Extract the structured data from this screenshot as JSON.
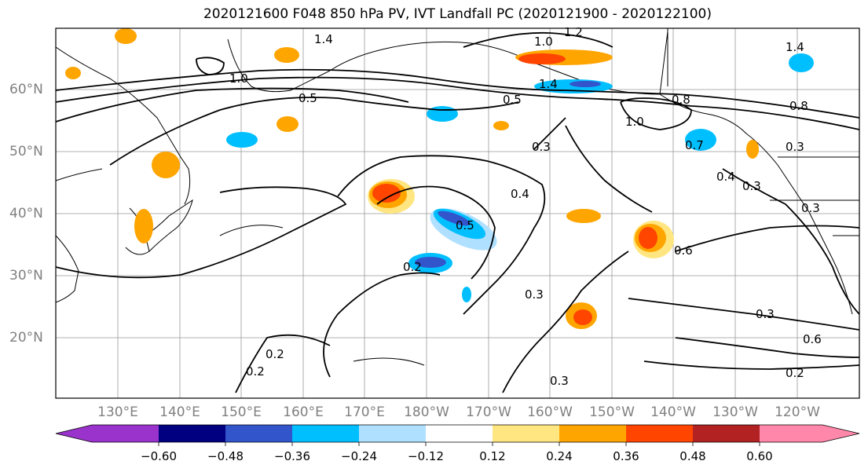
{
  "title": "2020121600 F048 850 hPa PV, IVT Landfall PC (2020121900 - 2020122100)",
  "lat_labels": [
    "60°N",
    "50°N",
    "40°N",
    "30°N",
    "20°N"
  ],
  "lon_labels": [
    "130°E",
    "140°E",
    "150°E",
    "160°E",
    "170°E",
    "180°W",
    "170°W",
    "160°W",
    "150°W",
    "140°W",
    "130°W",
    "120°W"
  ],
  "colorbar": {
    "ticks": [
      "−0.60",
      "−0.48",
      "−0.36",
      "−0.24",
      "−0.12",
      "0.12",
      "0.24",
      "0.36",
      "0.48",
      "0.60"
    ],
    "colors": [
      "#9933cc",
      "#000080",
      "#3355cc",
      "#00bfff",
      "#b0e0ff",
      "#ffffff",
      "#ffe680",
      "#ffa500",
      "#ff4500",
      "#b22222",
      "#ff88aa"
    ]
  },
  "contour_labels": [
    "1.2",
    "1.0",
    "1.4",
    "1.4",
    "1.0",
    "0.5",
    "0.8",
    "1.0",
    "0.7",
    "0.3",
    "0.4",
    "0.3",
    "0.4",
    "0.5",
    "0.2",
    "0.6",
    "0.3",
    "0.3",
    "0.6",
    "0.2",
    "0.2",
    "0.2",
    "0.3",
    "0.3",
    "0.3",
    "0.5",
    "0.8",
    "1.4"
  ],
  "shading_colors": {
    "positive_low": "#ffe680",
    "positive_mid": "#ffa500",
    "positive_high": "#ff4500",
    "negative_low": "#b0e0ff",
    "negative_mid": "#00bfff",
    "negative_high": "#3355cc"
  }
}
